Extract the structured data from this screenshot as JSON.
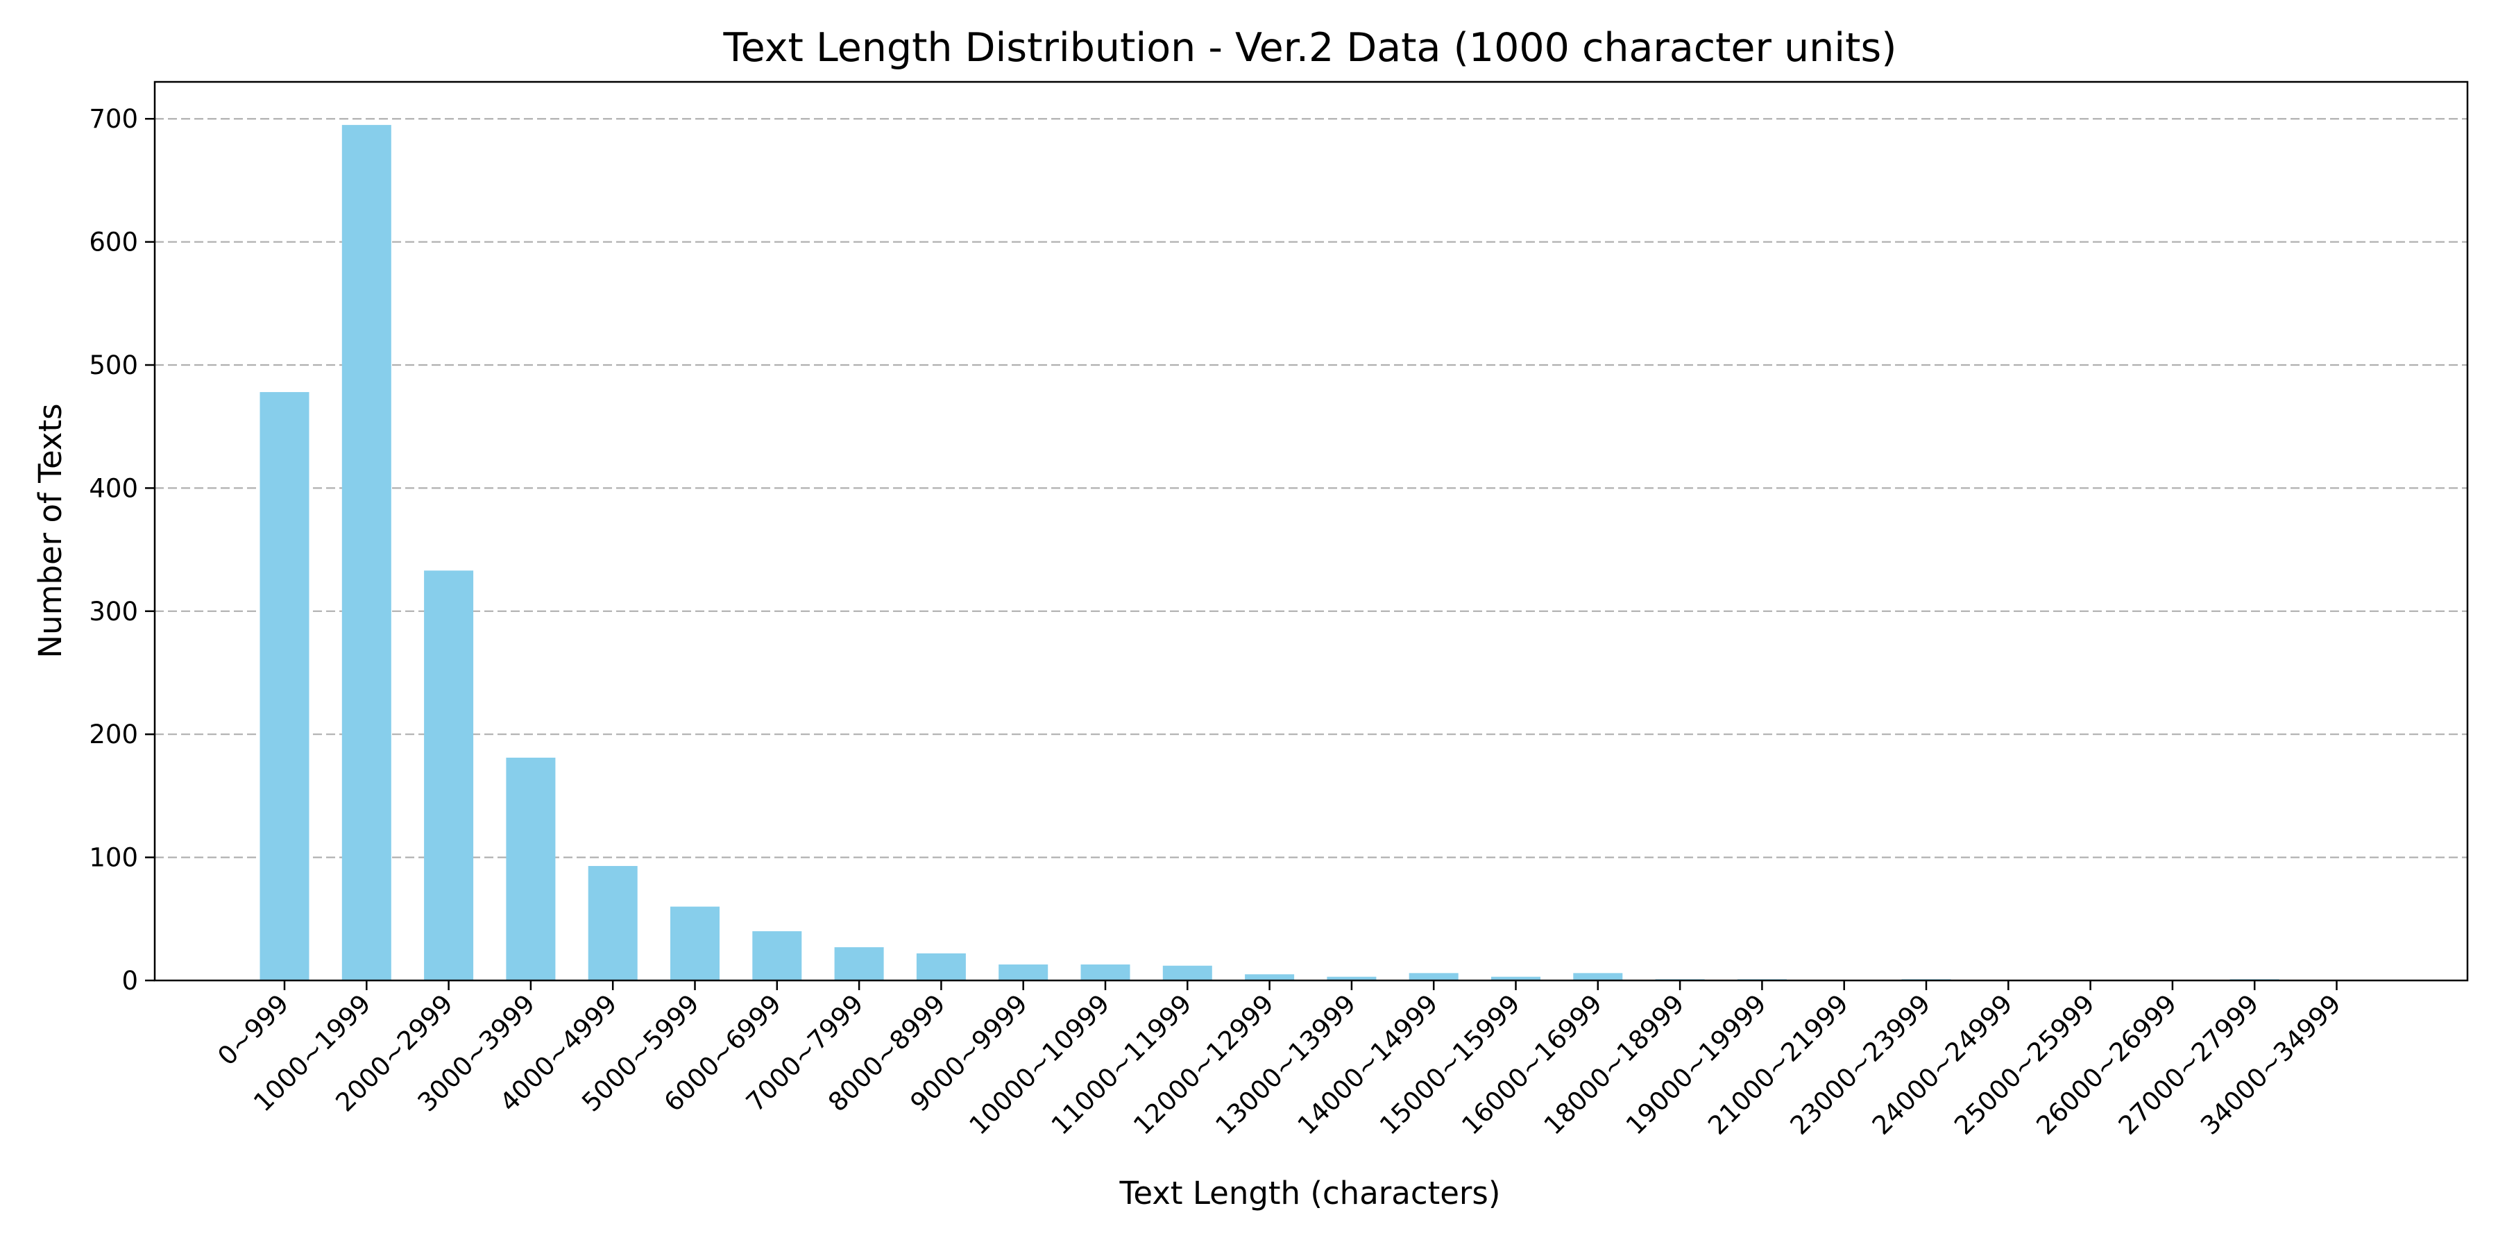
{
  "chart_data": {
    "type": "bar",
    "title": "Text Length Distribution - Ver.2 Data (1000 character units)",
    "xlabel": "Text Length (characters)",
    "ylabel": "Number of Texts",
    "categories": [
      "0~999",
      "1000~1999",
      "2000~2999",
      "3000~3999",
      "4000~4999",
      "5000~5999",
      "6000~6999",
      "7000~7999",
      "8000~8999",
      "9000~9999",
      "10000~10999",
      "11000~11999",
      "12000~12999",
      "13000~13999",
      "14000~14999",
      "15000~15999",
      "16000~16999",
      "18000~18999",
      "19000~19999",
      "21000~21999",
      "23000~23999",
      "24000~24999",
      "25000~25999",
      "26000~26999",
      "27000~27999",
      "34000~34999"
    ],
    "values": [
      478,
      695,
      333,
      181,
      93,
      60,
      40,
      27,
      22,
      13,
      13,
      12,
      5,
      3,
      6,
      3,
      6,
      1,
      1,
      0,
      1,
      0,
      0,
      0,
      1,
      0
    ],
    "ylim": [
      0,
      730
    ],
    "yticks": [
      0,
      100,
      200,
      300,
      400,
      500,
      600,
      700
    ],
    "grid": "y-dashed",
    "bar_color": "#87ceeb",
    "grid_color": "#b0b0b0"
  }
}
